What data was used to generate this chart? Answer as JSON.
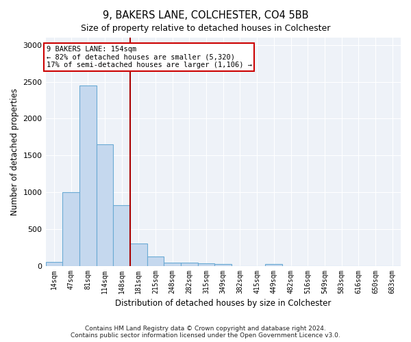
{
  "title": "9, BAKERS LANE, COLCHESTER, CO4 5BB",
  "subtitle": "Size of property relative to detached houses in Colchester",
  "xlabel": "Distribution of detached houses by size in Colchester",
  "ylabel": "Number of detached properties",
  "bar_labels": [
    "14sqm",
    "47sqm",
    "81sqm",
    "114sqm",
    "148sqm",
    "181sqm",
    "215sqm",
    "248sqm",
    "282sqm",
    "315sqm",
    "349sqm",
    "382sqm",
    "415sqm",
    "449sqm",
    "482sqm",
    "516sqm",
    "549sqm",
    "583sqm",
    "616sqm",
    "650sqm",
    "683sqm"
  ],
  "bar_values": [
    50,
    1000,
    2450,
    1650,
    820,
    300,
    130,
    45,
    40,
    30,
    20,
    0,
    0,
    20,
    0,
    0,
    0,
    0,
    0,
    0,
    0
  ],
  "bar_color": "#c5d8ee",
  "bar_edgecolor": "#6aaad4",
  "bar_width": 1.0,
  "vline_x": 4.5,
  "vline_color": "#aa0000",
  "annotation_label": "9 BAKERS LANE: 154sqm",
  "annotation_line1": "← 82% of detached houses are smaller (5,320)",
  "annotation_line2": "17% of semi-detached houses are larger (1,106) →",
  "annotation_box_color": "#cc0000",
  "ylim": [
    0,
    3100
  ],
  "yticks": [
    0,
    500,
    1000,
    1500,
    2000,
    2500,
    3000
  ],
  "background_color": "#eef2f8",
  "grid_color": "#ffffff",
  "footer_line1": "Contains HM Land Registry data © Crown copyright and database right 2024.",
  "footer_line2": "Contains public sector information licensed under the Open Government Licence v3.0."
}
